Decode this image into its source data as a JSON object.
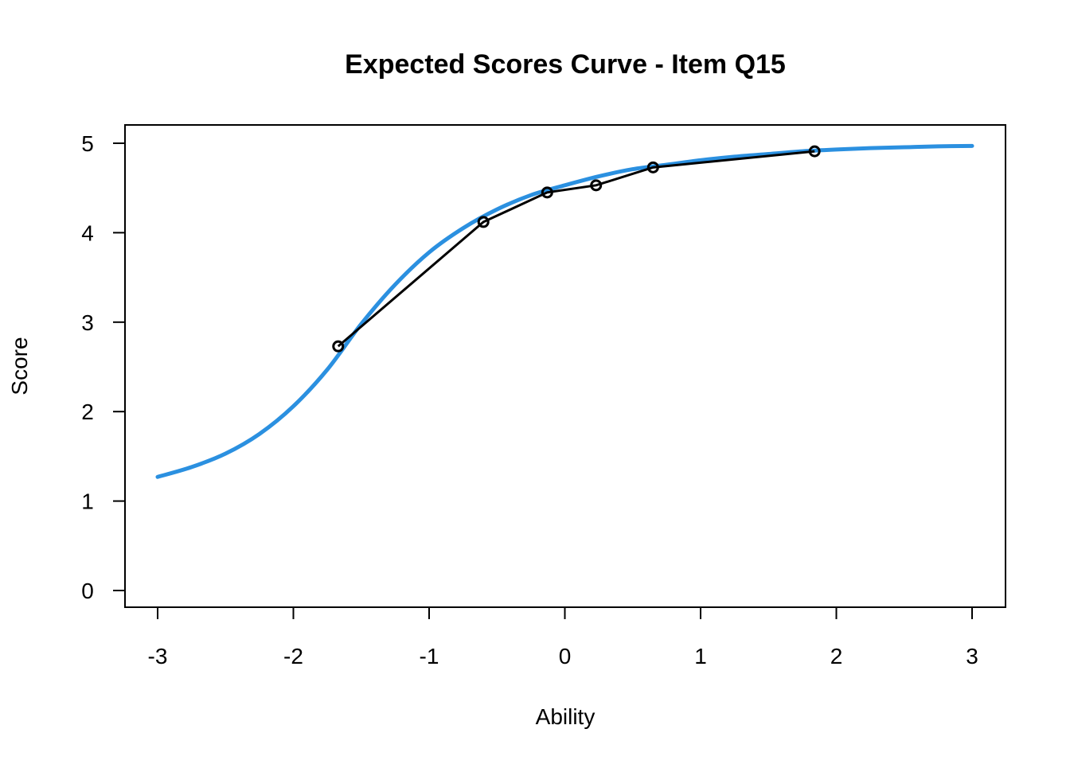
{
  "chart_data": {
    "type": "line",
    "title": "Expected Scores Curve - Item  Q15",
    "xlabel": "Ability",
    "ylabel": "Score",
    "xlim": [
      -3,
      3
    ],
    "ylim": [
      0,
      5
    ],
    "xticks": [
      "-3",
      "-2",
      "-1",
      "0",
      "1",
      "2",
      "3"
    ],
    "yticks": [
      "0",
      "1",
      "2",
      "3",
      "4",
      "5"
    ],
    "grid": false,
    "legend": "none",
    "series": [
      {
        "kind": "curve",
        "color": "#2b90e0",
        "x": [
          -3.0,
          -2.75,
          -2.5,
          -2.25,
          -2.0,
          -1.75,
          -1.5,
          -1.25,
          -1.0,
          -0.75,
          -0.5,
          -0.25,
          0.0,
          0.25,
          0.5,
          0.75,
          1.0,
          1.25,
          1.5,
          1.75,
          2.0,
          2.25,
          2.5,
          2.75,
          3.0
        ],
        "values": [
          1.27,
          1.38,
          1.53,
          1.75,
          2.06,
          2.47,
          2.98,
          3.42,
          3.78,
          4.05,
          4.26,
          4.42,
          4.53,
          4.63,
          4.71,
          4.76,
          4.81,
          4.85,
          4.88,
          4.91,
          4.93,
          4.945,
          4.955,
          4.965,
          4.97
        ]
      },
      {
        "kind": "observed",
        "color": "#000000",
        "x": [
          -1.67,
          -0.6,
          -0.13,
          0.23,
          0.65,
          1.84
        ],
        "values": [
          2.73,
          4.12,
          4.45,
          4.53,
          4.73,
          4.91
        ]
      }
    ]
  }
}
